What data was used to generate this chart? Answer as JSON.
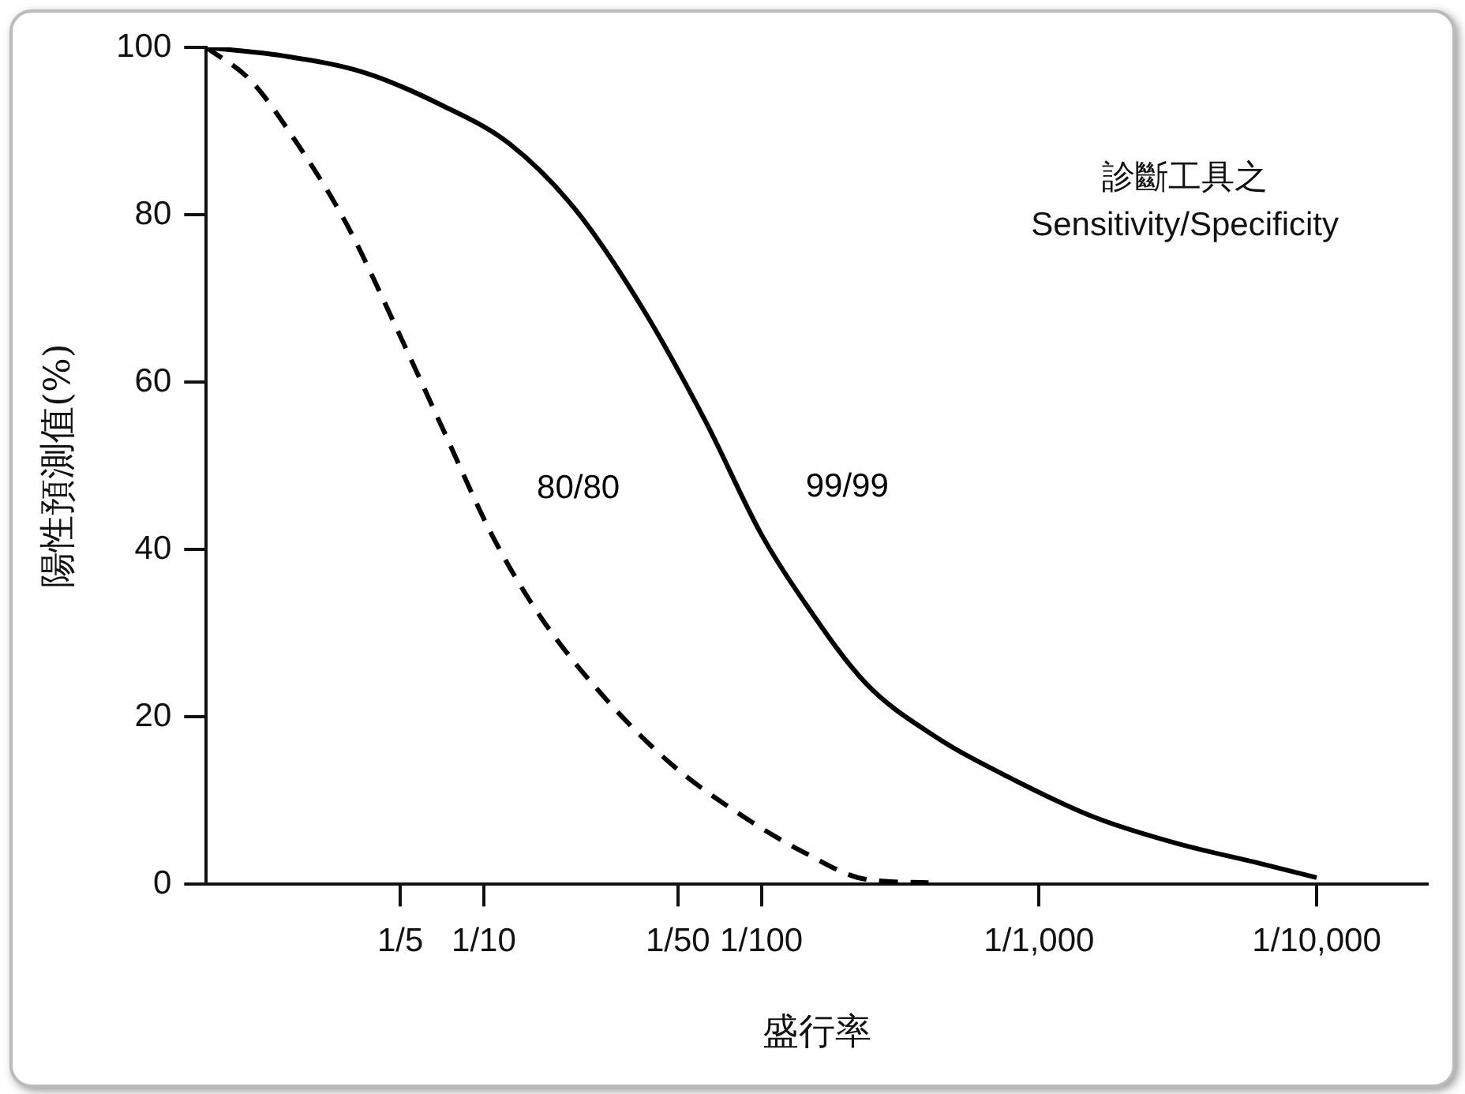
{
  "chart_data": {
    "type": "line",
    "xlabel": "盛行率",
    "ylabel": "陽性預測值(%)",
    "annotations": [
      "診斷工具之",
      "Sensitivity/Specificity"
    ],
    "log": "x",
    "xlim": [
      1,
      4e-05
    ],
    "xticks": [
      {
        "value": 0.2,
        "label": "1/5"
      },
      {
        "value": 0.1,
        "label": "1/10"
      },
      {
        "value": 0.02,
        "label": "1/50"
      },
      {
        "value": 0.01,
        "label": "1/100"
      },
      {
        "value": 0.001,
        "label": "1/1,000"
      },
      {
        "value": 0.0001,
        "label": "1/10,000"
      }
    ],
    "ylim": [
      0,
      100
    ],
    "yticks": [
      0,
      20,
      40,
      60,
      80,
      100
    ],
    "grid": false,
    "legend": false,
    "marker": "none",
    "series": [
      {
        "name": "80/80",
        "color": "#000000",
        "line_style": "dashed",
        "x": [
          1,
          0.69,
          0.47,
          0.31,
          0.21,
          0.14,
          0.093,
          0.062,
          0.036,
          0.021,
          0.012,
          0.0071,
          0.0042,
          0.0025
        ],
        "values": [
          100,
          96,
          88.5,
          78.7,
          67,
          54.3,
          41.6,
          31.8,
          22,
          14.3,
          8.4,
          3.9,
          0.6,
          0.2
        ]
      },
      {
        "name": "99/99",
        "color": "#000000",
        "line_style": "solid",
        "x": [
          1,
          0.53,
          0.27,
          0.14,
          0.081,
          0.047,
          0.027,
          0.016,
          0.01,
          0.0071,
          0.0042,
          0.0024,
          0.0012,
          0.00063,
          0.00032,
          0.00016,
          0.0001
        ],
        "values": [
          100,
          99,
          97,
          93,
          88.5,
          80.7,
          69,
          55.5,
          41.8,
          34,
          24,
          17.8,
          12.3,
          8,
          4.9,
          2.5,
          0.8
        ]
      }
    ]
  }
}
